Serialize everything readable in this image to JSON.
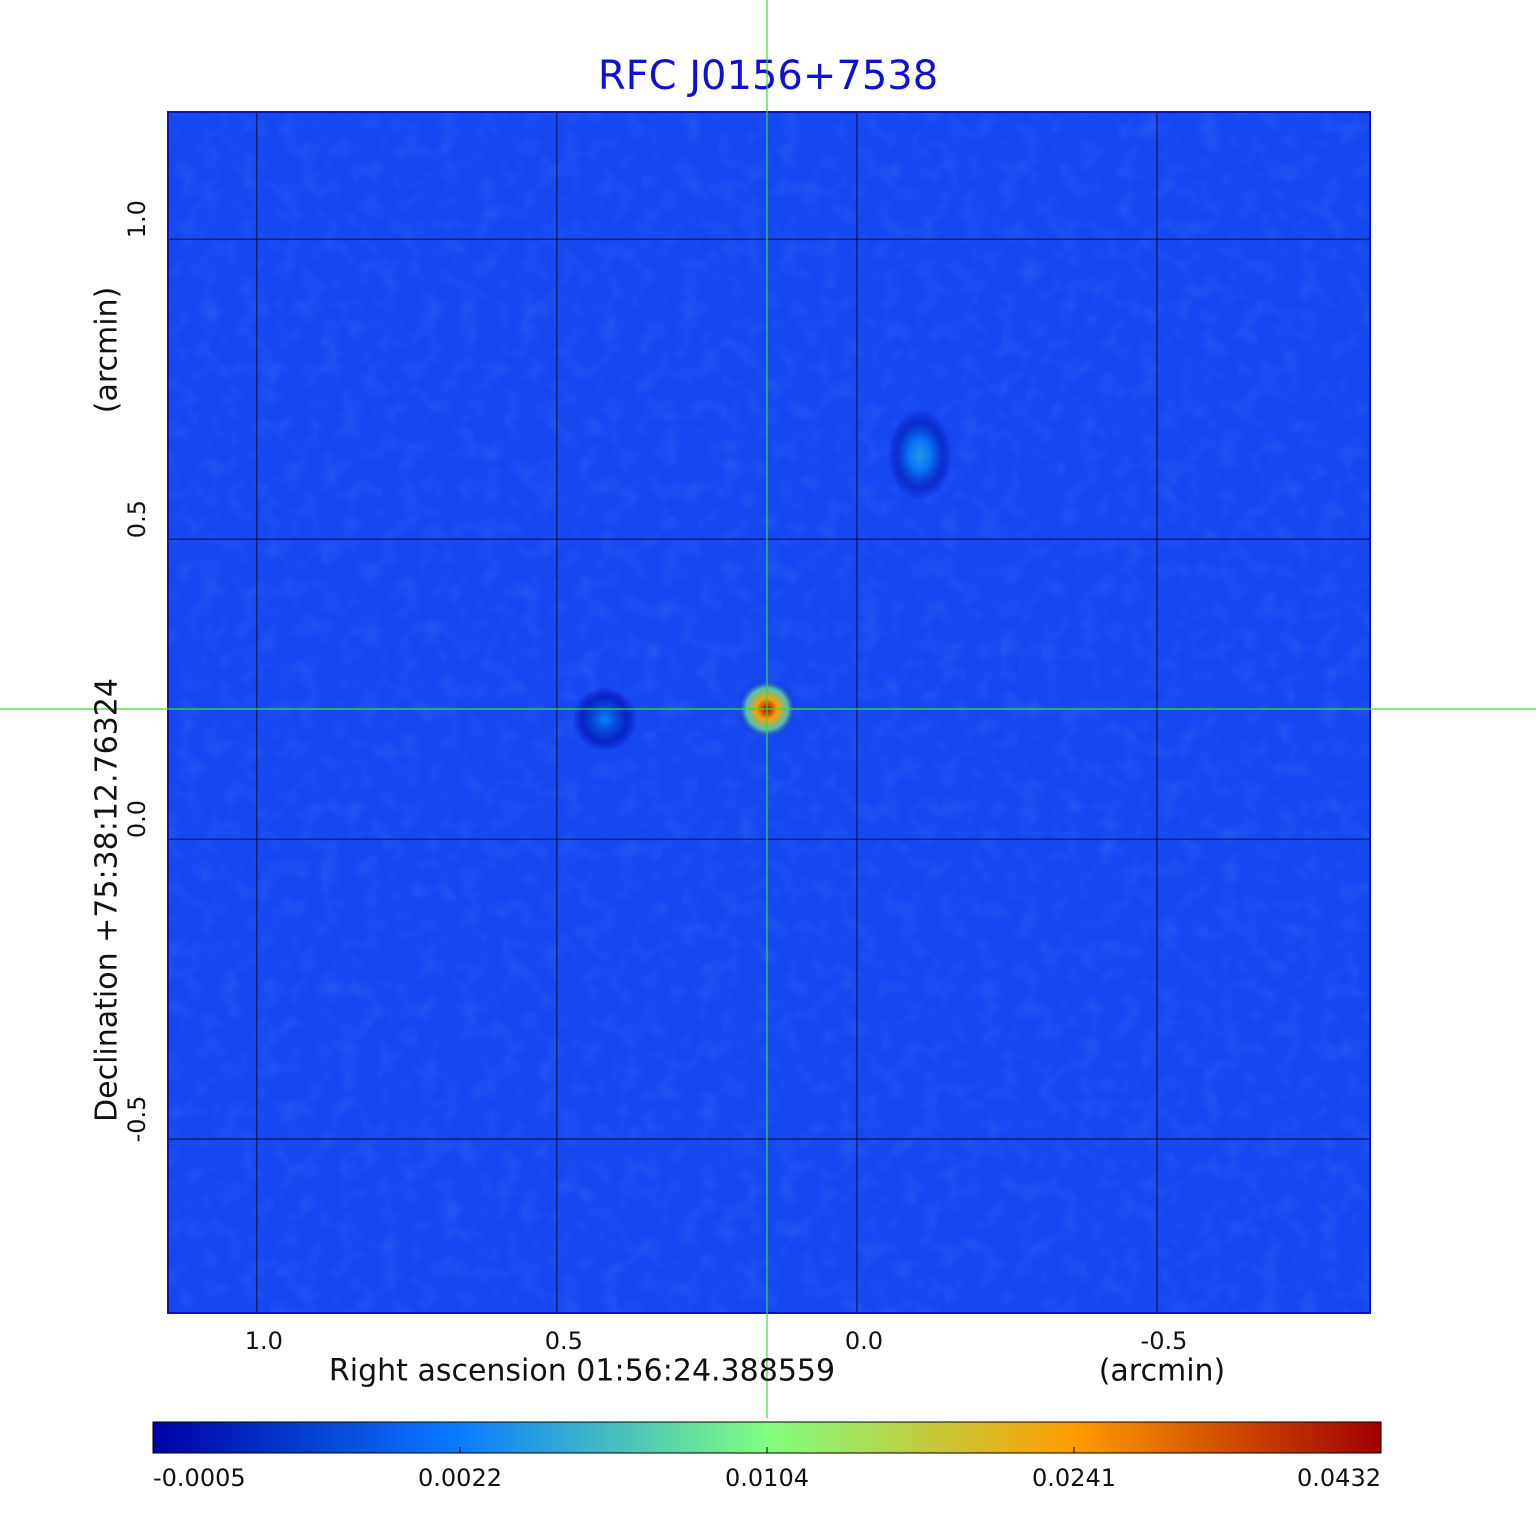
{
  "chart_data": {
    "type": "image",
    "title": "RFC J0156+7538",
    "xlabel": "Right ascension  01:56:24.388559",
    "xunit": "(arcmin)",
    "ylabel": "Declination  +75:38:12.76324",
    "yunit": "(arcmin)",
    "xlim": [
      1.148,
      -0.855
    ],
    "ylim": [
      -0.79,
      1.212
    ],
    "xticks": [
      {
        "value": 1,
        "label": "1.0"
      },
      {
        "value": 0.5,
        "label": "0.5"
      },
      {
        "value": 0,
        "label": "0.0"
      },
      {
        "value": -0.5,
        "label": "-0.5"
      }
    ],
    "yticks": [
      {
        "value": 1,
        "label": "1.0"
      },
      {
        "value": 0.5,
        "label": "0.5"
      },
      {
        "value": 0,
        "label": "0.0"
      },
      {
        "value": -0.5,
        "label": "-0.5"
      }
    ],
    "grid": true,
    "colorbar_ticks": [
      -0.0005,
      0.0022,
      0.0104,
      0.0241,
      0.0432
    ],
    "colorbar_colors": [
      "#0000a8",
      "#0a7cff",
      "#80ff80",
      "#ff9c00",
      "#a00000"
    ],
    "sources": {
      "x": [
        0.15,
        -0.105,
        0.42
      ],
      "y": [
        0.217,
        0.64,
        0.2
      ],
      "values": [
        0.0432,
        0.004,
        0.0025
      ]
    }
  }
}
